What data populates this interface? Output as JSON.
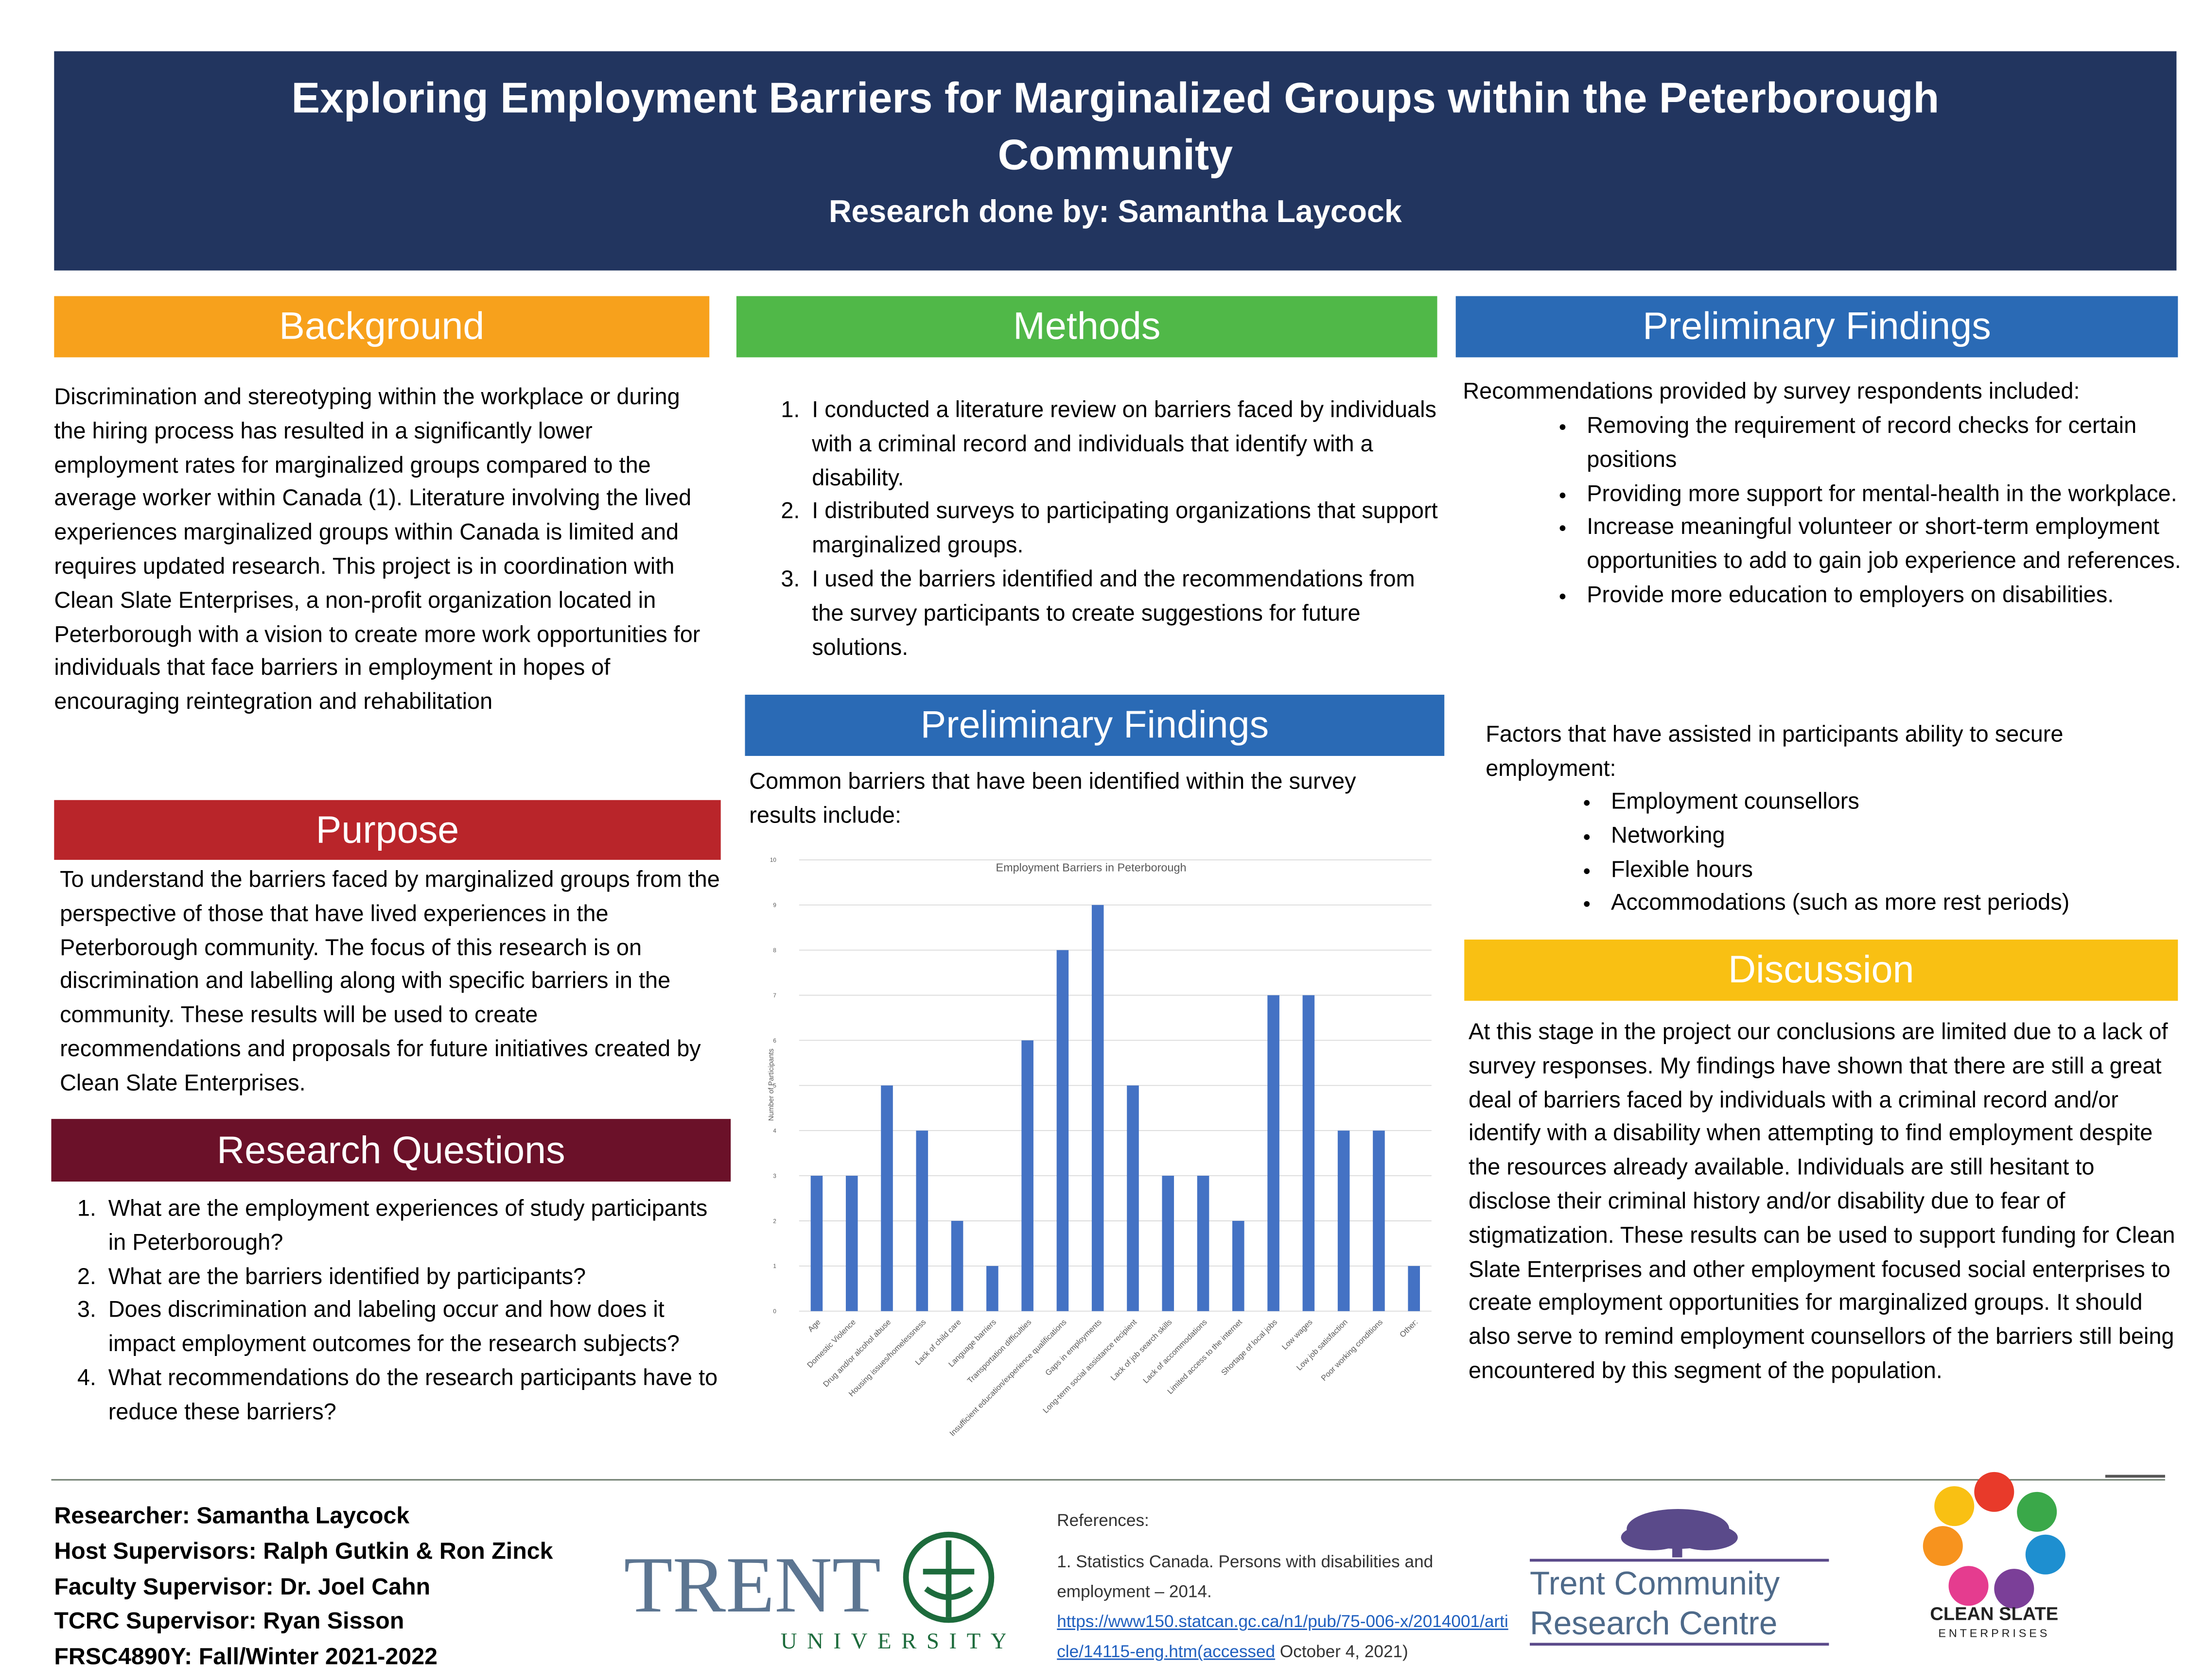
{
  "header": {
    "title": "Exploring Employment Barriers for Marginalized Groups within the Peterborough Community",
    "subtitle": "Research done by: Samantha Laycock"
  },
  "background": {
    "heading": "Background",
    "text": "Discrimination and stereotyping within the workplace or during the hiring process has resulted in a significantly lower employment rates for marginalized groups compared to the average worker within Canada (1). Literature involving the lived experiences marginalized groups within Canada is limited and requires updated research. This project is in coordination with Clean Slate Enterprises, a non-profit organization located in Peterborough with a vision to create more work opportunities for individuals that face barriers in employment in hopes of encouraging reintegration and rehabilitation"
  },
  "purpose": {
    "heading": "Purpose",
    "text": "To understand the barriers faced by marginalized groups from the perspective of those that have lived experiences in the Peterborough community. The focus of this research is on discrimination and labelling along with specific barriers in the community.  These results will be used to create recommendations and proposals for future initiatives created by Clean Slate Enterprises."
  },
  "research_questions": {
    "heading": "Research Questions",
    "items": [
      "What are the employment experiences of study participants in Peterborough?",
      "What are the barriers identified by participants?",
      "Does discrimination and labeling occur and how does it impact employment outcomes for the research subjects?",
      "What recommendations do the research participants have to reduce these barriers?"
    ]
  },
  "methods": {
    "heading": "Methods",
    "items": [
      "I conducted a literature review on barriers faced by individuals with a criminal record and individuals that identify with a disability.",
      "I distributed surveys to participating organizations that support marginalized groups.",
      "I used the barriers identified and the recommendations from the survey participants to create suggestions for future solutions."
    ]
  },
  "findings_barriers": {
    "heading": "Preliminary Findings",
    "intro": "Common barriers that have been identified within the survey results include:"
  },
  "chart_data": {
    "type": "bar",
    "title": "Employment Barriers in Peterborough",
    "y_label": "Number of Participants",
    "categories": [
      "Age",
      "Domestic Violence",
      "Drug and/or alcohol abuse",
      "Housing issues/homelessness",
      "Lack of child care",
      "Language barriers",
      "Transportation difficulties",
      "Insufficient education/experience qualifications",
      "Gaps in employments",
      "Long-term social assistance recipient",
      "Lack of job search skills",
      "Lack of accommodations",
      "Limited access to the internet",
      "Shortage of local jobs",
      "Low wages",
      "Low job satisfaction",
      "Poor working conditions",
      "Other:"
    ],
    "values": [
      3,
      3,
      5,
      4,
      2,
      1,
      6,
      8,
      9,
      5,
      3,
      3,
      2,
      7,
      7,
      4,
      4,
      1
    ],
    "color": "#4472c4",
    "ylim": [
      0,
      10
    ],
    "yticks": [
      0,
      1,
      2,
      3,
      4,
      5,
      6,
      7,
      8,
      9,
      10
    ],
    "grid": true
  },
  "findings_recommendations": {
    "heading": "Preliminary Findings",
    "intro": "Recommendations provided by survey respondents included:",
    "items": [
      "Removing the requirement of record checks for certain positions",
      "Providing more support for mental-health in the workplace.",
      "Increase meaningful volunteer or short-term employment opportunities to add to gain job experience and references.",
      "Provide more education to employers on disabilities."
    ],
    "factors_intro": "Factors that have assisted in participants ability to secure employment:",
    "factors": [
      "Employment counsellors",
      "Networking",
      "Flexible hours",
      "Accommodations (such as more rest periods)"
    ]
  },
  "discussion": {
    "heading": "Discussion",
    "text": "At this stage in the project our conclusions are limited due to a lack of survey responses. My findings have shown that there are still a great deal of barriers faced by individuals with a criminal record and/or identify with a disability when attempting to find employment despite the resources already available. Individuals are still hesitant to disclose their criminal history and/or disability due to fear of stigmatization. These results can be used to support funding for Clean Slate Enterprises and other employment focused social enterprises to create employment opportunities for marginalized groups. It should also serve to remind employment counsellors of the barriers still being encountered by this segment of the population."
  },
  "footer": {
    "credits": [
      "Researcher: Samantha Laycock",
      "Host Supervisors: Ralph Gutkin & Ron Zinck",
      "Faculty Supervisor:  Dr. Joel Cahn",
      "TCRC Supervisor: Ryan Sisson",
      "FRSC4890Y: Fall/Winter 2021-2022"
    ],
    "references": {
      "heading": "References:",
      "citation": "1. Statistics Canada. Persons with disabilities and employment – 2014.",
      "url": "https://www150.statcan.gc.ca/n1/pub/75-006-x/2014001/article/14115-eng.htm(accessed",
      "accessed": " October 4, 2021)"
    }
  },
  "logos": {
    "trent": [
      "TRENT",
      "UNIVERSITY"
    ],
    "tcrc": [
      "Trent Community",
      "Research Centre"
    ],
    "clean_slate": [
      "CLEAN SLATE",
      "ENTERPRISES"
    ]
  }
}
